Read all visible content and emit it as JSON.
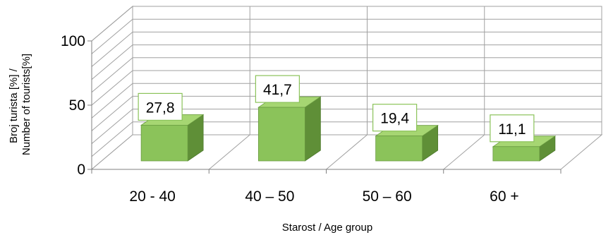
{
  "chart_data": {
    "type": "bar",
    "title": "",
    "categories": [
      "20 - 40",
      "40 – 50",
      "50 – 60",
      "60 +"
    ],
    "values": [
      27.8,
      41.7,
      19.4,
      11.1
    ],
    "value_labels": [
      "27,8",
      "41,7",
      "19,4",
      "11,1"
    ],
    "xlabel": "Starost / Age group",
    "ylabel_lines": [
      "Broj turista [%] /",
      "Number of tourists[%]"
    ],
    "yticks": [
      "0",
      "50",
      "100"
    ],
    "ylim": [
      0,
      100
    ],
    "grid": true,
    "three_d": true,
    "colors": {
      "bar_front": "#8bc35a",
      "bar_top": "#a6d672",
      "bar_side": "#5f8f37",
      "grid": "#a0a0a0",
      "axis": "#808080"
    }
  }
}
